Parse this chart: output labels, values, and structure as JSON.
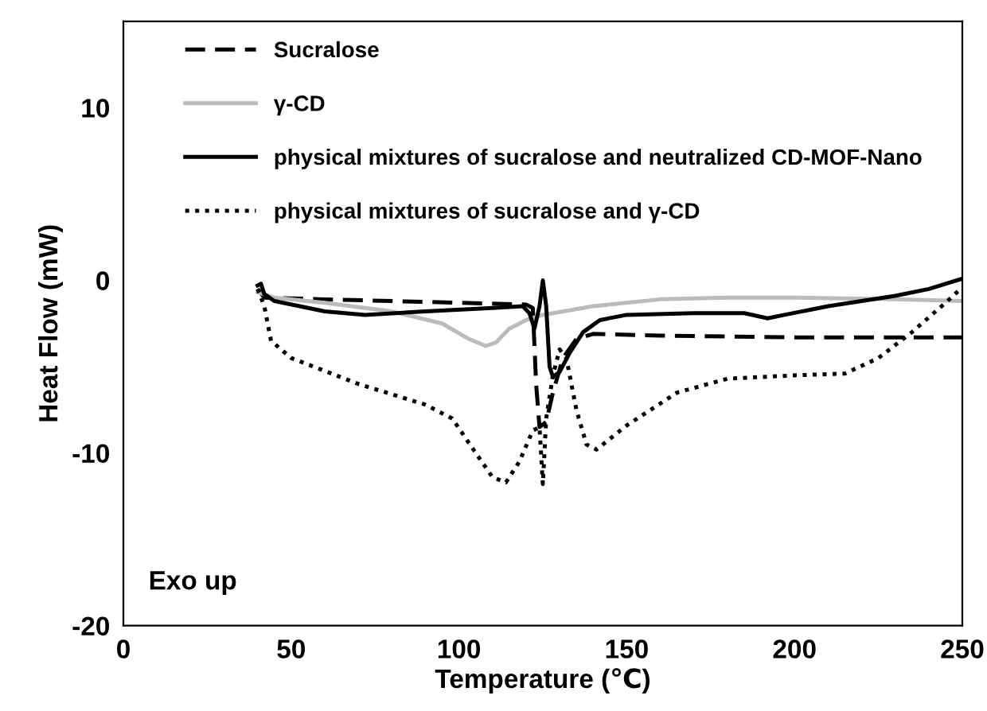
{
  "chart_data": {
    "type": "line",
    "xlabel": "Temperature (℃)",
    "ylabel": "Heat Flow (mW)",
    "xlim": [
      0,
      250
    ],
    "ylim": [
      -20,
      15
    ],
    "xticks": [
      0,
      50,
      100,
      150,
      200,
      250
    ],
    "yticks": [
      -20,
      -10,
      0,
      10
    ],
    "grid": false,
    "legend": "top left",
    "annotations": [
      "Exo up"
    ],
    "series": [
      {
        "name": "Sucralose",
        "color": "#000000",
        "line_style": "dashed",
        "x": [
          40,
          42,
          60,
          100,
          120,
          122,
          123,
          124,
          126,
          128,
          131,
          135,
          140,
          160,
          200,
          250
        ],
        "values": [
          -0.5,
          -1.0,
          -1.1,
          -1.3,
          -1.4,
          -1.6,
          -6,
          -8.5,
          -8.2,
          -6.5,
          -4.5,
          -3.4,
          -3.1,
          -3.2,
          -3.3,
          -3.3
        ]
      },
      {
        "name": "γ-CD",
        "color": "#bbbbbb",
        "line_style": "solid",
        "x": [
          40,
          45,
          60,
          80,
          95,
          103,
          108,
          111,
          115,
          120,
          125,
          140,
          160,
          180,
          200,
          230,
          250
        ],
        "values": [
          -0.7,
          -1.0,
          -1.3,
          -1.8,
          -2.5,
          -3.4,
          -3.8,
          -3.6,
          -2.8,
          -2.3,
          -2.0,
          -1.5,
          -1.1,
          -1.0,
          -1.0,
          -1.1,
          -1.2
        ]
      },
      {
        "name": "physical mixtures of sucralose and neutralized CD-MOF-Nano",
        "color": "#000000",
        "line_style": "solid",
        "x": [
          40,
          41,
          42,
          45,
          60,
          72,
          90,
          110,
          119,
          121,
          122.5,
          124,
          125,
          126,
          127,
          128,
          130,
          133,
          137,
          142,
          150,
          170,
          185,
          192,
          197,
          210,
          230,
          240,
          250
        ],
        "values": [
          -0.3,
          -0.2,
          -0.8,
          -1.2,
          -1.8,
          -2.0,
          -1.8,
          -1.6,
          -1.5,
          -1.9,
          -2.8,
          -1.5,
          0.0,
          -1.5,
          -5,
          -5.6,
          -5.3,
          -4.2,
          -3.0,
          -2.3,
          -2.0,
          -1.9,
          -1.9,
          -2.2,
          -2.0,
          -1.5,
          -0.9,
          -0.5,
          0.1
        ]
      },
      {
        "name": "physical mixtures of sucralose and γ-CD",
        "color": "#000000",
        "line_style": "dotted",
        "x": [
          40,
          42,
          44,
          50,
          70,
          90,
          98,
          105,
          110,
          114,
          118,
          122,
          124,
          125,
          126,
          128,
          130,
          132,
          135,
          138,
          141,
          150,
          165,
          180,
          200,
          215,
          225,
          235,
          245,
          250
        ],
        "values": [
          -0.5,
          -1.5,
          -3.5,
          -4.5,
          -6.0,
          -7.2,
          -8.0,
          -10,
          -11.4,
          -11.7,
          -10.5,
          -8.7,
          -8.5,
          -11.8,
          -8,
          -5.5,
          -4.0,
          -4.5,
          -7.5,
          -9.5,
          -9.8,
          -8.4,
          -6.5,
          -5.7,
          -5.5,
          -5.4,
          -4.5,
          -3,
          -1.3,
          -0.4
        ]
      }
    ]
  }
}
